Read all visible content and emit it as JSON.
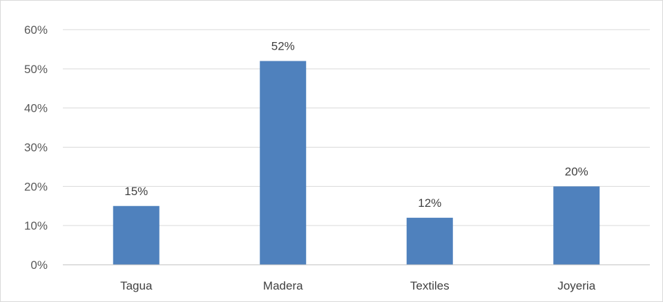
{
  "chart_data": {
    "type": "bar",
    "categories": [
      "Tagua",
      "Madera",
      "Textiles",
      "Joyeria"
    ],
    "values": [
      15,
      52,
      12,
      20
    ],
    "value_labels": [
      "15%",
      "52%",
      "12%",
      "20%"
    ],
    "ylim": [
      0,
      60
    ],
    "y_ticks": [
      0,
      10,
      20,
      30,
      40,
      50,
      60
    ],
    "y_tick_labels": [
      "0%",
      "10%",
      "20%",
      "30%",
      "40%",
      "50%",
      "60%"
    ],
    "y_unit": "%",
    "grid": true,
    "legend": "none",
    "title": "",
    "xlabel": "",
    "ylabel": "",
    "bar_color": "#4f81bd",
    "grid_color": "#d9d9d9",
    "axis_color": "#bfbfbf"
  }
}
